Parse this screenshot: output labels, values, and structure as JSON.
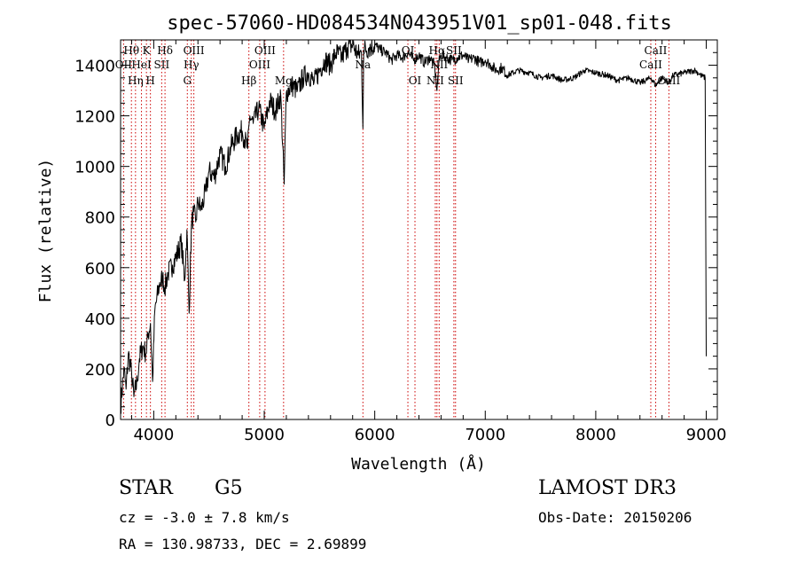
{
  "chart_data": {
    "type": "line",
    "title": "spec-57060-HD084534N043951V01_sp01-048.fits",
    "xlabel": "Wavelength (Å)",
    "ylabel": "Flux (relative)",
    "xlim": [
      3700,
      9100
    ],
    "ylim": [
      0,
      1500
    ],
    "xticks": [
      4000,
      5000,
      6000,
      7000,
      8000,
      9000
    ],
    "yticks": [
      0,
      200,
      400,
      600,
      800,
      1000,
      1200,
      1400
    ],
    "xtick_labels": [
      "4000",
      "5000",
      "6000",
      "7000",
      "8000",
      "9000"
    ],
    "ytick_labels": [
      "0",
      "200",
      "400",
      "600",
      "800",
      "1000",
      "1200",
      "1400"
    ],
    "series": [
      {
        "name": "spectrum",
        "color": "#000000",
        "x": [
          3700,
          3730,
          3750,
          3770,
          3800,
          3820,
          3850,
          3870,
          3900,
          3930,
          3950,
          3970,
          3990,
          4010,
          4050,
          4080,
          4100,
          4130,
          4170,
          4200,
          4250,
          4280,
          4300,
          4320,
          4340,
          4360,
          4380,
          4400,
          4430,
          4470,
          4500,
          4550,
          4600,
          4650,
          4700,
          4750,
          4800,
          4850,
          4870,
          4900,
          4950,
          5000,
          5050,
          5100,
          5150,
          5180,
          5200,
          5250,
          5300,
          5350,
          5400,
          5450,
          5500,
          5550,
          5600,
          5650,
          5700,
          5750,
          5800,
          5850,
          5880,
          5893,
          5900,
          5950,
          6000,
          6050,
          6100,
          6150,
          6200,
          6250,
          6300,
          6350,
          6400,
          6450,
          6500,
          6540,
          6563,
          6580,
          6600,
          6650,
          6700,
          6750,
          6800,
          6850,
          6900,
          6950,
          7000,
          7050,
          7100,
          7150,
          7200,
          7300,
          7400,
          7500,
          7600,
          7700,
          7800,
          7900,
          8000,
          8100,
          8200,
          8300,
          8400,
          8500,
          8542,
          8600,
          8662,
          8700,
          8800,
          8900,
          8950,
          8990,
          9000
        ],
        "y": [
          50,
          200,
          120,
          260,
          180,
          90,
          150,
          240,
          290,
          260,
          340,
          380,
          150,
          430,
          530,
          560,
          520,
          580,
          610,
          640,
          700,
          550,
          750,
          420,
          760,
          820,
          780,
          860,
          830,
          900,
          980,
          960,
          1050,
          1000,
          1080,
          1120,
          1140,
          1070,
          1200,
          1170,
          1230,
          1150,
          1260,
          1220,
          1280,
          930,
          1290,
          1320,
          1300,
          1350,
          1370,
          1330,
          1380,
          1420,
          1400,
          1450,
          1430,
          1470,
          1480,
          1440,
          1450,
          1150,
          1460,
          1470,
          1480,
          1460,
          1450,
          1420,
          1440,
          1430,
          1450,
          1420,
          1440,
          1410,
          1430,
          1400,
          1300,
          1410,
          1440,
          1430,
          1420,
          1430,
          1440,
          1420,
          1430,
          1410,
          1420,
          1400,
          1380,
          1390,
          1360,
          1380,
          1370,
          1350,
          1360,
          1340,
          1350,
          1380,
          1370,
          1360,
          1340,
          1350,
          1330,
          1350,
          1320,
          1350,
          1330,
          1360,
          1370,
          1380,
          1360,
          1350,
          250
        ]
      }
    ],
    "line_markers": [
      {
        "wavelength": 3727,
        "label": "OII",
        "row": 2
      },
      {
        "wavelength": 3798,
        "label": "Hθ",
        "row": 1
      },
      {
        "wavelength": 3835,
        "label": "Hη",
        "row": 3
      },
      {
        "wavelength": 3889,
        "label": "HeI",
        "row": 2
      },
      {
        "wavelength": 3934,
        "label": "K",
        "row": 1
      },
      {
        "wavelength": 3970,
        "label": "H",
        "row": 3
      },
      {
        "wavelength": 4072,
        "label": "SII",
        "row": 2
      },
      {
        "wavelength": 4102,
        "label": "Hδ",
        "row": 1
      },
      {
        "wavelength": 4304,
        "label": "G",
        "row": 3
      },
      {
        "wavelength": 4340,
        "label": "Hγ",
        "row": 2
      },
      {
        "wavelength": 4363,
        "label": "OIII",
        "row": 1
      },
      {
        "wavelength": 4861,
        "label": "Hβ",
        "row": 3
      },
      {
        "wavelength": 4959,
        "label": "OIII",
        "row": 2
      },
      {
        "wavelength": 5007,
        "label": "OIII",
        "row": 1
      },
      {
        "wavelength": 5175,
        "label": "Mg",
        "row": 3
      },
      {
        "wavelength": 5893,
        "label": "Na",
        "row": 2
      },
      {
        "wavelength": 6300,
        "label": "OI",
        "row": 1
      },
      {
        "wavelength": 6364,
        "label": "OI",
        "row": 3
      },
      {
        "wavelength": 6548,
        "label": "NII",
        "row": 3
      },
      {
        "wavelength": 6563,
        "label": "Hα",
        "row": 1
      },
      {
        "wavelength": 6583,
        "label": "NII",
        "row": 2
      },
      {
        "wavelength": 6716,
        "label": "SII",
        "row": 1
      },
      {
        "wavelength": 6731,
        "label": "SII",
        "row": 3
      },
      {
        "wavelength": 8498,
        "label": "CaII",
        "row": 2
      },
      {
        "wavelength": 8542,
        "label": "CaII",
        "row": 1
      },
      {
        "wavelength": 8662,
        "label": "CaII",
        "row": 3
      }
    ],
    "marker_color": "#cc0000",
    "grid": false,
    "legend": "none"
  },
  "info": {
    "object_class": "STAR",
    "subclass": "G5",
    "survey": "LAMOST DR3",
    "redshift": "cz = -3.0 ± 7.8 km/s",
    "obs_date": "Obs-Date: 20150206",
    "coords": "RA = 130.98733, DEC =    2.69899"
  }
}
